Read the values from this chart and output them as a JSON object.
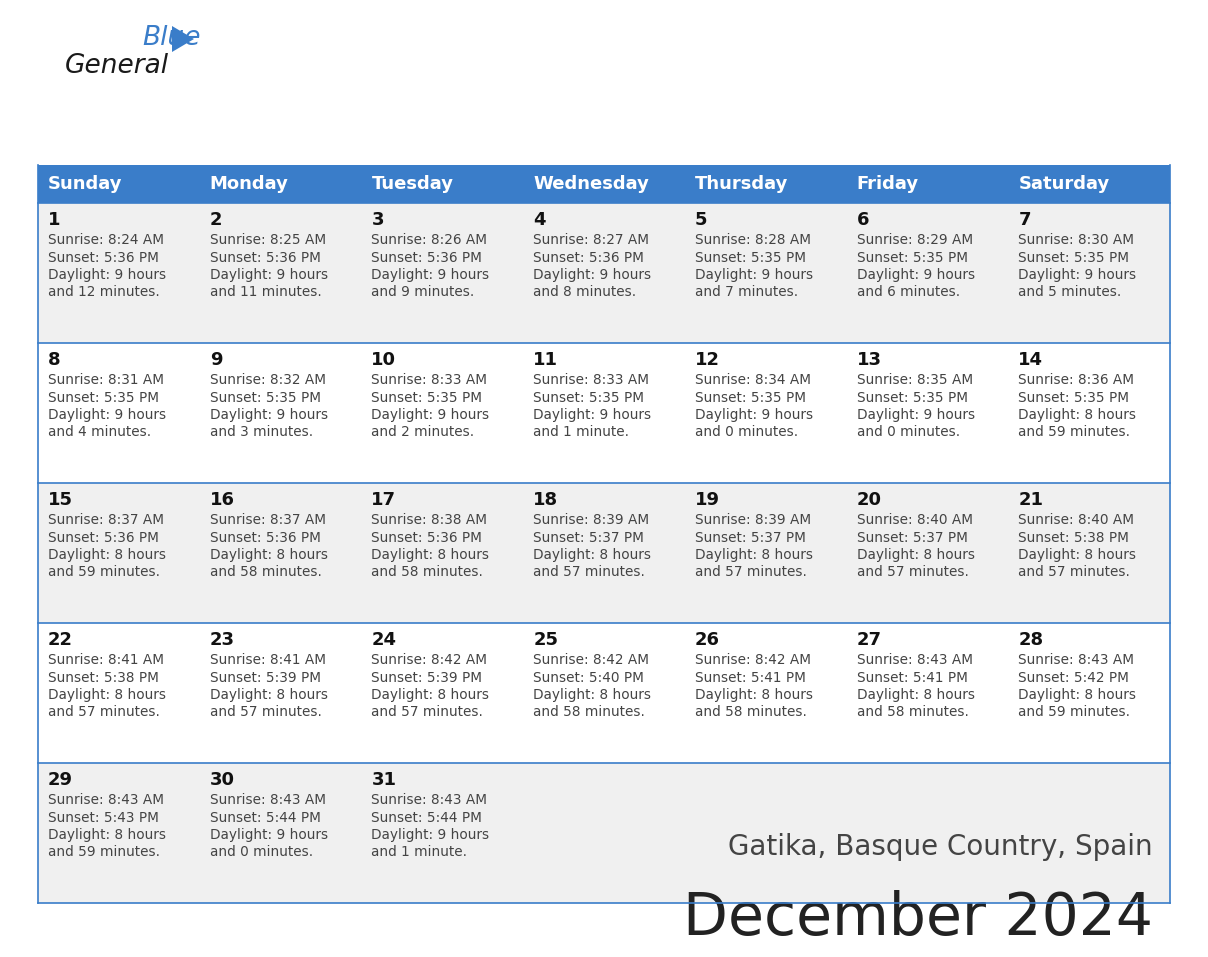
{
  "title": "December 2024",
  "subtitle": "Gatika, Basque Country, Spain",
  "days_of_week": [
    "Sunday",
    "Monday",
    "Tuesday",
    "Wednesday",
    "Thursday",
    "Friday",
    "Saturday"
  ],
  "header_bg": "#3A7DC9",
  "header_text": "#FFFFFF",
  "row_bg_odd": "#F0F0F0",
  "row_bg_even": "#FFFFFF",
  "cell_text": "#444444",
  "day_num_color": "#111111",
  "border_color": "#3A7DC9",
  "title_color": "#222222",
  "subtitle_color": "#444444",
  "logo_general_color": "#1a1a1a",
  "logo_blue_color": "#3A7DC9",
  "calendar_data": [
    [
      {
        "day": 1,
        "sunrise": "8:24 AM",
        "sunset": "5:36 PM",
        "daylight_h": "9 hours",
        "daylight_m": "and 12 minutes."
      },
      {
        "day": 2,
        "sunrise": "8:25 AM",
        "sunset": "5:36 PM",
        "daylight_h": "9 hours",
        "daylight_m": "and 11 minutes."
      },
      {
        "day": 3,
        "sunrise": "8:26 AM",
        "sunset": "5:36 PM",
        "daylight_h": "9 hours",
        "daylight_m": "and 9 minutes."
      },
      {
        "day": 4,
        "sunrise": "8:27 AM",
        "sunset": "5:36 PM",
        "daylight_h": "9 hours",
        "daylight_m": "and 8 minutes."
      },
      {
        "day": 5,
        "sunrise": "8:28 AM",
        "sunset": "5:35 PM",
        "daylight_h": "9 hours",
        "daylight_m": "and 7 minutes."
      },
      {
        "day": 6,
        "sunrise": "8:29 AM",
        "sunset": "5:35 PM",
        "daylight_h": "9 hours",
        "daylight_m": "and 6 minutes."
      },
      {
        "day": 7,
        "sunrise": "8:30 AM",
        "sunset": "5:35 PM",
        "daylight_h": "9 hours",
        "daylight_m": "and 5 minutes."
      }
    ],
    [
      {
        "day": 8,
        "sunrise": "8:31 AM",
        "sunset": "5:35 PM",
        "daylight_h": "9 hours",
        "daylight_m": "and 4 minutes."
      },
      {
        "day": 9,
        "sunrise": "8:32 AM",
        "sunset": "5:35 PM",
        "daylight_h": "9 hours",
        "daylight_m": "and 3 minutes."
      },
      {
        "day": 10,
        "sunrise": "8:33 AM",
        "sunset": "5:35 PM",
        "daylight_h": "9 hours",
        "daylight_m": "and 2 minutes."
      },
      {
        "day": 11,
        "sunrise": "8:33 AM",
        "sunset": "5:35 PM",
        "daylight_h": "9 hours",
        "daylight_m": "and 1 minute."
      },
      {
        "day": 12,
        "sunrise": "8:34 AM",
        "sunset": "5:35 PM",
        "daylight_h": "9 hours",
        "daylight_m": "and 0 minutes."
      },
      {
        "day": 13,
        "sunrise": "8:35 AM",
        "sunset": "5:35 PM",
        "daylight_h": "9 hours",
        "daylight_m": "and 0 minutes."
      },
      {
        "day": 14,
        "sunrise": "8:36 AM",
        "sunset": "5:35 PM",
        "daylight_h": "8 hours",
        "daylight_m": "and 59 minutes."
      }
    ],
    [
      {
        "day": 15,
        "sunrise": "8:37 AM",
        "sunset": "5:36 PM",
        "daylight_h": "8 hours",
        "daylight_m": "and 59 minutes."
      },
      {
        "day": 16,
        "sunrise": "8:37 AM",
        "sunset": "5:36 PM",
        "daylight_h": "8 hours",
        "daylight_m": "and 58 minutes."
      },
      {
        "day": 17,
        "sunrise": "8:38 AM",
        "sunset": "5:36 PM",
        "daylight_h": "8 hours",
        "daylight_m": "and 58 minutes."
      },
      {
        "day": 18,
        "sunrise": "8:39 AM",
        "sunset": "5:37 PM",
        "daylight_h": "8 hours",
        "daylight_m": "and 57 minutes."
      },
      {
        "day": 19,
        "sunrise": "8:39 AM",
        "sunset": "5:37 PM",
        "daylight_h": "8 hours",
        "daylight_m": "and 57 minutes."
      },
      {
        "day": 20,
        "sunrise": "8:40 AM",
        "sunset": "5:37 PM",
        "daylight_h": "8 hours",
        "daylight_m": "and 57 minutes."
      },
      {
        "day": 21,
        "sunrise": "8:40 AM",
        "sunset": "5:38 PM",
        "daylight_h": "8 hours",
        "daylight_m": "and 57 minutes."
      }
    ],
    [
      {
        "day": 22,
        "sunrise": "8:41 AM",
        "sunset": "5:38 PM",
        "daylight_h": "8 hours",
        "daylight_m": "and 57 minutes."
      },
      {
        "day": 23,
        "sunrise": "8:41 AM",
        "sunset": "5:39 PM",
        "daylight_h": "8 hours",
        "daylight_m": "and 57 minutes."
      },
      {
        "day": 24,
        "sunrise": "8:42 AM",
        "sunset": "5:39 PM",
        "daylight_h": "8 hours",
        "daylight_m": "and 57 minutes."
      },
      {
        "day": 25,
        "sunrise": "8:42 AM",
        "sunset": "5:40 PM",
        "daylight_h": "8 hours",
        "daylight_m": "and 58 minutes."
      },
      {
        "day": 26,
        "sunrise": "8:42 AM",
        "sunset": "5:41 PM",
        "daylight_h": "8 hours",
        "daylight_m": "and 58 minutes."
      },
      {
        "day": 27,
        "sunrise": "8:43 AM",
        "sunset": "5:41 PM",
        "daylight_h": "8 hours",
        "daylight_m": "and 58 minutes."
      },
      {
        "day": 28,
        "sunrise": "8:43 AM",
        "sunset": "5:42 PM",
        "daylight_h": "8 hours",
        "daylight_m": "and 59 minutes."
      }
    ],
    [
      {
        "day": 29,
        "sunrise": "8:43 AM",
        "sunset": "5:43 PM",
        "daylight_h": "8 hours",
        "daylight_m": "and 59 minutes."
      },
      {
        "day": 30,
        "sunrise": "8:43 AM",
        "sunset": "5:44 PM",
        "daylight_h": "9 hours",
        "daylight_m": "and 0 minutes."
      },
      {
        "day": 31,
        "sunrise": "8:43 AM",
        "sunset": "5:44 PM",
        "daylight_h": "9 hours",
        "daylight_m": "and 1 minute."
      },
      null,
      null,
      null,
      null
    ]
  ]
}
